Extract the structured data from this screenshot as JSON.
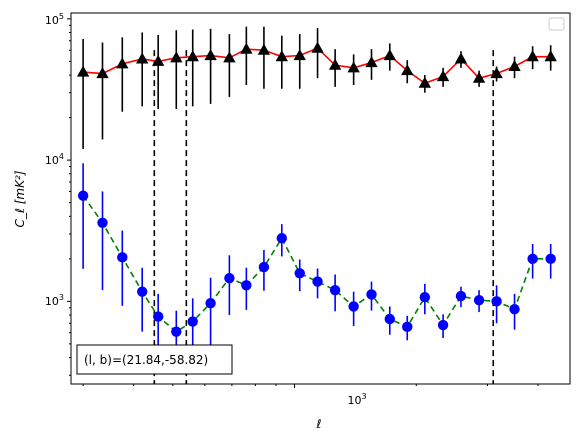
{
  "chart_data": {
    "type": "scatter",
    "xscale": "log",
    "yscale": "log",
    "xlim": [
      280,
      4800
    ],
    "ylim": [
      260,
      110000
    ],
    "xlabel": "ℓ",
    "ylabel": "C_ℓ  [mK²]",
    "x_ticks": [
      {
        "value": 1000,
        "label_base": "10",
        "label_exp": "3"
      }
    ],
    "y_ticks": [
      {
        "value": 1000,
        "label_base": "10",
        "label_exp": "3"
      },
      {
        "value": 10000,
        "label_base": "10",
        "label_exp": "4"
      },
      {
        "value": 100000,
        "label_base": "10",
        "label_exp": "5"
      }
    ],
    "annotation": "(l, b)=(21.84,-58.82)",
    "legend": "upper-right (empty)",
    "vlines": [
      450,
      540,
      3100
    ],
    "series": [
      {
        "marker": "triangle",
        "color": "#000000",
        "line_color": "#ff0000",
        "line_style": "solid",
        "x": [
          300,
          335,
          375,
          420,
          460,
          510,
          560,
          620,
          690,
          760,
          840,
          930,
          1030,
          1140,
          1260,
          1400,
          1550,
          1720,
          1900,
          2100,
          2330,
          2580,
          2860,
          3160,
          3500,
          3880,
          4300
        ],
        "y": [
          42000,
          41000,
          48000,
          52000,
          50000,
          53000,
          54000,
          55000,
          53000,
          61000,
          60000,
          54000,
          55000,
          62000,
          47000,
          45000,
          49000,
          55000,
          43000,
          35000,
          39000,
          52000,
          38000,
          41000,
          46000,
          54000,
          54000
        ],
        "err_low": [
          30000,
          27000,
          26000,
          28000,
          27000,
          30000,
          30000,
          30000,
          25000,
          27000,
          28000,
          22000,
          23000,
          24000,
          14000,
          11000,
          12000,
          12000,
          8000,
          5000,
          6000,
          7000,
          5000,
          5000,
          8000,
          10000,
          11000
        ],
        "err_high": [
          30000,
          27000,
          26000,
          28000,
          27000,
          30000,
          30000,
          30000,
          25000,
          27000,
          28000,
          22000,
          23000,
          24000,
          14000,
          11000,
          12000,
          12000,
          8000,
          5000,
          6000,
          7000,
          5000,
          5000,
          8000,
          10000,
          11000
        ]
      },
      {
        "marker": "circle",
        "color": "#0000ff",
        "line_color": "#008000",
        "line_style": "dashed",
        "x": [
          300,
          335,
          375,
          420,
          460,
          510,
          560,
          620,
          690,
          760,
          840,
          930,
          1030,
          1140,
          1260,
          1400,
          1550,
          1720,
          1900,
          2100,
          2330,
          2580,
          2860,
          3160,
          3500,
          3880,
          4300
        ],
        "y": [
          5600,
          3600,
          2050,
          1170,
          780,
          610,
          720,
          970,
          1460,
          1300,
          1750,
          2800,
          1580,
          1380,
          1200,
          920,
          1120,
          750,
          660,
          1070,
          680,
          1090,
          1020,
          1000,
          880,
          2000,
          2000
        ],
        "err_low": [
          3900,
          2400,
          1120,
          560,
          350,
          250,
          330,
          500,
          660,
          430,
          560,
          720,
          400,
          330,
          350,
          250,
          260,
          170,
          130,
          260,
          130,
          180,
          180,
          300,
          250,
          550,
          550
        ],
        "err_high": [
          3900,
          2400,
          1120,
          560,
          350,
          250,
          330,
          500,
          660,
          430,
          560,
          720,
          400,
          330,
          350,
          250,
          260,
          170,
          130,
          260,
          130,
          180,
          180,
          300,
          250,
          550,
          550
        ]
      }
    ]
  },
  "colors": {
    "vline": "#000000",
    "annotation_border": "#000000"
  }
}
